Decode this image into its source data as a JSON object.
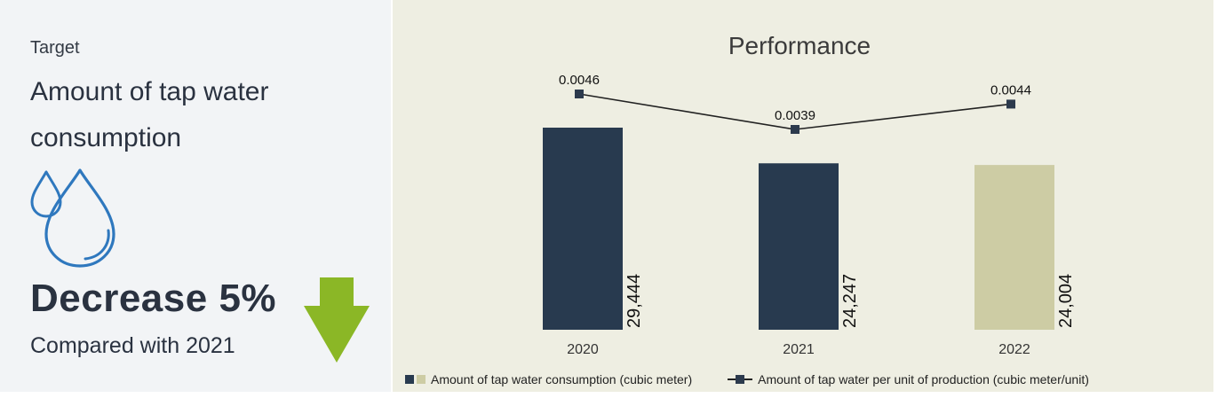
{
  "summary": {
    "label": "Target",
    "title": "Amount of tap water consumption",
    "headline": "Decrease 5%",
    "comparison": "Compared with 2021",
    "icon_drop": "water-drops-icon",
    "icon_arrow": "down-arrow-icon",
    "colors": {
      "headline": "#2a3240",
      "drop": "#2f78be",
      "arrow": "#8bb726"
    }
  },
  "chart_data": {
    "type": "bar",
    "title": "Performance",
    "categories": [
      "2020",
      "2021",
      "2022"
    ],
    "series": [
      {
        "name": "Amount of tap water consumption (cubic meter)",
        "type": "bar",
        "values": [
          29444,
          24247,
          24004
        ],
        "labels": [
          "29,444",
          "24,247",
          "24,004"
        ],
        "colors": [
          "#283a4f",
          "#283a4f",
          "#cdcca4"
        ]
      },
      {
        "name": "Amount of tap water per unit of production (cubic meter/unit)",
        "type": "line",
        "values": [
          0.0046,
          0.0039,
          0.0044
        ],
        "labels": [
          "0.0046",
          "0.0039",
          "0.0044"
        ],
        "color": "#222222"
      }
    ],
    "legend": "bottom",
    "grid": false
  }
}
